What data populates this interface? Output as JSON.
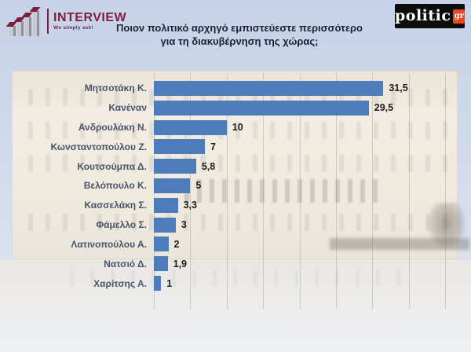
{
  "header": {
    "interview_logo": {
      "wordmark": "INTERVIEW",
      "tagline": "We simply ask!",
      "brand_color": "#7e1e3f"
    },
    "politic_logo": {
      "wordmark": "politic",
      "suffix": "gr",
      "bg_color": "#0d0d0d",
      "accent_color": "#e8481f"
    },
    "title_line1": "Ποιον πολιτικό αρχηγό εμπιστεύεστε περισσότερο",
    "title_line2": "για τη διακυβέρνηση της χώρας;"
  },
  "chart_data": {
    "type": "bar",
    "orientation": "horizontal",
    "title": "Ποιον πολιτικό αρχηγό εμπιστεύεστε περισσότερο για τη διακυβέρνηση της χώρας;",
    "categories": [
      "Μητσοτάκη Κ.",
      "Κανέναν",
      "Ανδρουλάκη Ν.",
      "Κωνσταντοπούλου Ζ.",
      "Κουτσούμπα Δ.",
      "Βελόπουλο Κ.",
      "Κασσελάκη Σ.",
      "Φάμελλο Σ.",
      "Λατινοπούλου Α.",
      "Νατσιό Δ.",
      "Χαρίτσης Α."
    ],
    "values": [
      31.5,
      29.5,
      10,
      7,
      5.8,
      5,
      3.3,
      3,
      2,
      1.9,
      1
    ],
    "value_labels": [
      "31,5",
      "29,5",
      "10",
      "7",
      "5,8",
      "5",
      "3,3",
      "3",
      "2",
      "1,9",
      "1"
    ],
    "xlim": [
      0,
      40
    ],
    "gridlines_every": 5,
    "grid": true,
    "legend": false,
    "bar_color": "#4c7cba",
    "label_color": "#49536a",
    "value_color": "#1d1d1d"
  }
}
